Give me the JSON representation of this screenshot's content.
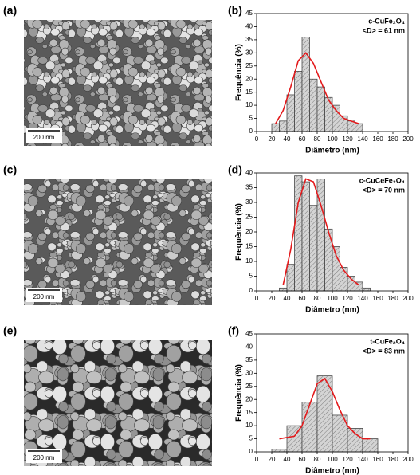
{
  "images": [
    {
      "label": "(a)",
      "scale_bar": "200 nm"
    },
    {
      "label": "(c)",
      "scale_bar": "200 nm"
    },
    {
      "label": "(e)",
      "scale_bar": "200 nm"
    }
  ],
  "chart_data": [
    {
      "type": "histogram",
      "panel_label": "(b)",
      "annotation": [
        "c-CuFe₂O₄",
        "<D> = 61 nm"
      ],
      "xlabel": "Diâmetro (nm)",
      "ylabel": "Frequência (%)",
      "bins": [
        20,
        30,
        40,
        50,
        60,
        70,
        80,
        90,
        100,
        110,
        120,
        130,
        140
      ],
      "values": [
        3,
        4,
        14,
        23,
        36,
        20,
        17,
        13,
        10,
        6,
        4,
        3
      ],
      "color": "#d4d4d4",
      "fit_x": [
        25,
        35,
        45,
        55,
        65,
        75,
        85,
        95,
        105,
        115,
        125,
        135
      ],
      "fit_values": [
        3,
        8,
        17,
        27,
        30,
        26,
        19,
        12,
        8,
        5,
        4,
        3
      ],
      "fit_color": "#e31a1c",
      "xlim": [
        0,
        200
      ],
      "xticks": [
        0,
        20,
        40,
        60,
        80,
        100,
        120,
        140,
        160,
        180,
        200
      ],
      "ylim": [
        0,
        45
      ],
      "yticks": [
        0,
        5,
        10,
        15,
        20,
        25,
        30,
        35,
        40,
        45
      ]
    },
    {
      "type": "histogram",
      "panel_label": "(d)",
      "annotation": [
        "c-CuCeFe₂O₄",
        "<D> = 70 nm"
      ],
      "xlabel": "Diâmetro (nm)",
      "ylabel": "Frequência (%)",
      "bins": [
        30,
        40,
        50,
        60,
        70,
        80,
        90,
        100,
        110,
        120,
        130,
        140,
        150
      ],
      "values": [
        1,
        9,
        39,
        37,
        29,
        38,
        21,
        15,
        8,
        5,
        3,
        1
      ],
      "color": "#d4d4d4",
      "fit_x": [
        35,
        45,
        55,
        65,
        75,
        85,
        95,
        105,
        115,
        125,
        135
      ],
      "fit_values": [
        2,
        14,
        30,
        38,
        37,
        29,
        20,
        12,
        7,
        4,
        2
      ],
      "fit_color": "#e31a1c",
      "xlim": [
        0,
        200
      ],
      "xticks": [
        0,
        20,
        40,
        60,
        80,
        100,
        120,
        140,
        160,
        180,
        200
      ],
      "ylim": [
        0,
        40
      ],
      "yticks": [
        0,
        5,
        10,
        15,
        20,
        25,
        30,
        35,
        40
      ]
    },
    {
      "type": "histogram",
      "panel_label": "(f)",
      "annotation": [
        "t-CuFe₂O₄",
        "<D> = 83 nm"
      ],
      "xlabel": "Diâmetro (nm)",
      "ylabel": "Frequência (%)",
      "bins": [
        20,
        40,
        60,
        80,
        100,
        120,
        140,
        160
      ],
      "values": [
        1,
        10,
        19,
        29,
        14,
        9,
        5
      ],
      "color": "#d4d4d4",
      "fit_x": [
        30,
        50,
        60,
        70,
        80,
        90,
        100,
        110,
        120,
        130,
        140,
        150
      ],
      "fit_values": [
        5,
        6,
        10,
        18,
        26,
        28,
        23,
        16,
        10,
        7,
        5,
        5
      ],
      "fit_color": "#e31a1c",
      "xlim": [
        0,
        200
      ],
      "xticks": [
        0,
        20,
        40,
        60,
        80,
        100,
        120,
        140,
        160,
        180,
        200
      ],
      "ylim": [
        0,
        45
      ],
      "yticks": [
        0,
        5,
        10,
        15,
        20,
        25,
        30,
        35,
        40,
        45
      ]
    }
  ]
}
